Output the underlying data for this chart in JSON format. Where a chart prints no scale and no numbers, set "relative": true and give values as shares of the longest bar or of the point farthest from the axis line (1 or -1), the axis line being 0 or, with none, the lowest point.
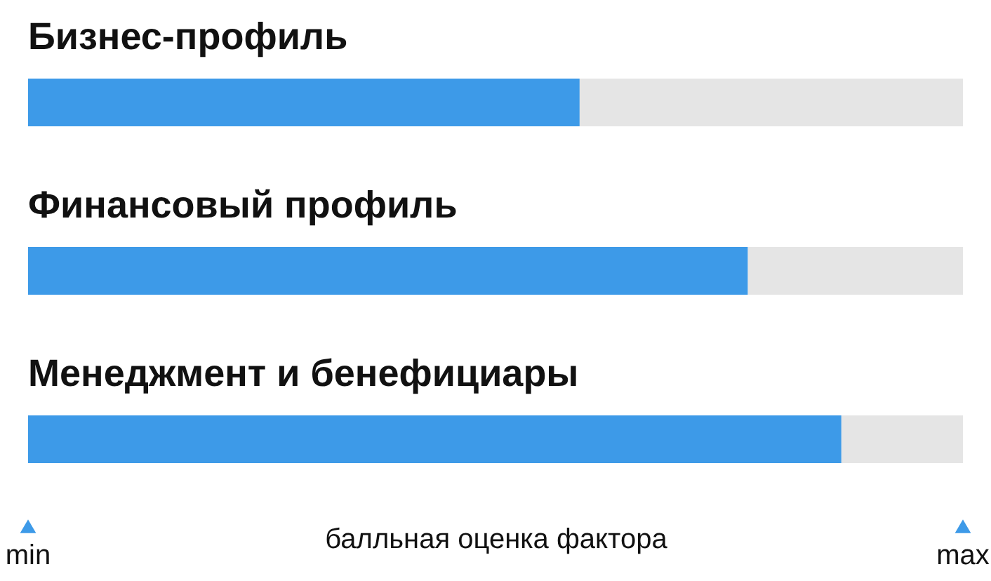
{
  "chart_data": {
    "type": "bar",
    "orientation": "horizontal",
    "relative": true,
    "stacked": true,
    "categories": [
      "Бизнес-профиль",
      "Финансовый профиль",
      "Менеджмент и бенефициары"
    ],
    "series": [
      {
        "color": "#3d9ae8",
        "values": [
          0.59,
          0.77,
          0.87
        ]
      },
      {
        "color": "#e5e5e5",
        "values": [
          0.41,
          0.23,
          0.13
        ]
      }
    ],
    "xlabel": "балльная оценка фактора",
    "annotations": [
      "min",
      "max"
    ]
  }
}
